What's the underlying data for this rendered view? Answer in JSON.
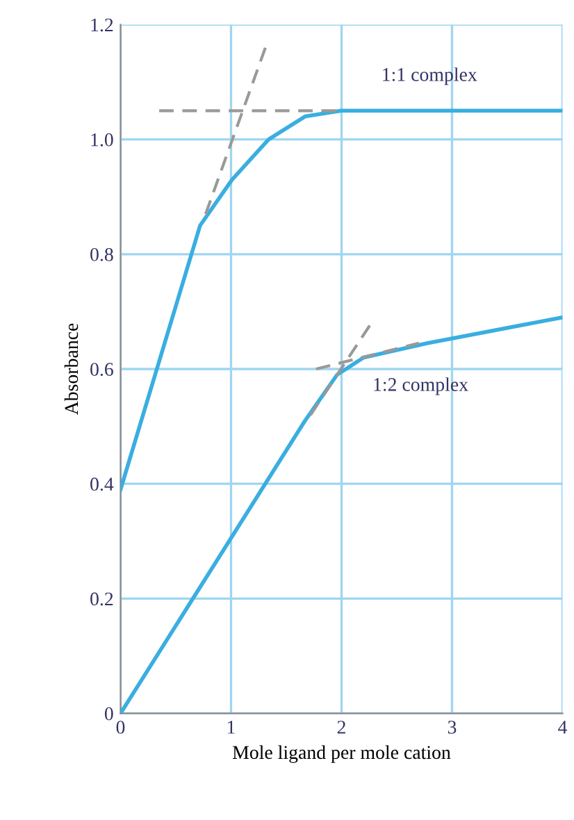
{
  "chart_data": {
    "type": "line",
    "xlabel": "Mole ligand per mole cation",
    "ylabel": "Absorbance",
    "xlim": [
      0,
      4
    ],
    "ylim": [
      0,
      1.2
    ],
    "xticks": [
      0,
      1,
      2,
      3,
      4
    ],
    "yticks": [
      0,
      0.2,
      0.4,
      0.6,
      0.8,
      {
        "value": 1,
        "label": "1.0"
      },
      1.2
    ],
    "grid": true,
    "line_style": "solid",
    "series": [
      {
        "color": "#3aaee0",
        "x": [
          0,
          0.72,
          1.01,
          1.34,
          1.67,
          2.0,
          4.0
        ],
        "values": [
          0.39,
          0.85,
          0.93,
          1.0,
          1.04,
          1.05,
          1.05
        ]
      },
      {
        "color": "#3aaee0",
        "x": [
          0,
          1.67,
          1.96,
          2.2,
          2.78,
          4.0
        ],
        "values": [
          0,
          0.51,
          0.59,
          0.62,
          0.645,
          0.69
        ]
      },
      {
        "color": "#999999",
        "line_style": "dashed",
        "x": [
          0.35,
          2.0
        ],
        "values": [
          1.05,
          1.05
        ]
      },
      {
        "color": "#999999",
        "line_style": "dashed",
        "x": [
          0.77,
          1.33
        ],
        "values": [
          0.87,
          1.17
        ]
      },
      {
        "color": "#999999",
        "line_style": "dashed",
        "x": [
          1.72,
          2.27
        ],
        "values": [
          0.52,
          0.68
        ]
      },
      {
        "color": "#999999",
        "line_style": "dashed",
        "x": [
          1.77,
          2.7
        ],
        "values": [
          0.6,
          0.645
        ]
      }
    ],
    "annotations": [
      "1:1 complex",
      "1:2 complex"
    ]
  }
}
